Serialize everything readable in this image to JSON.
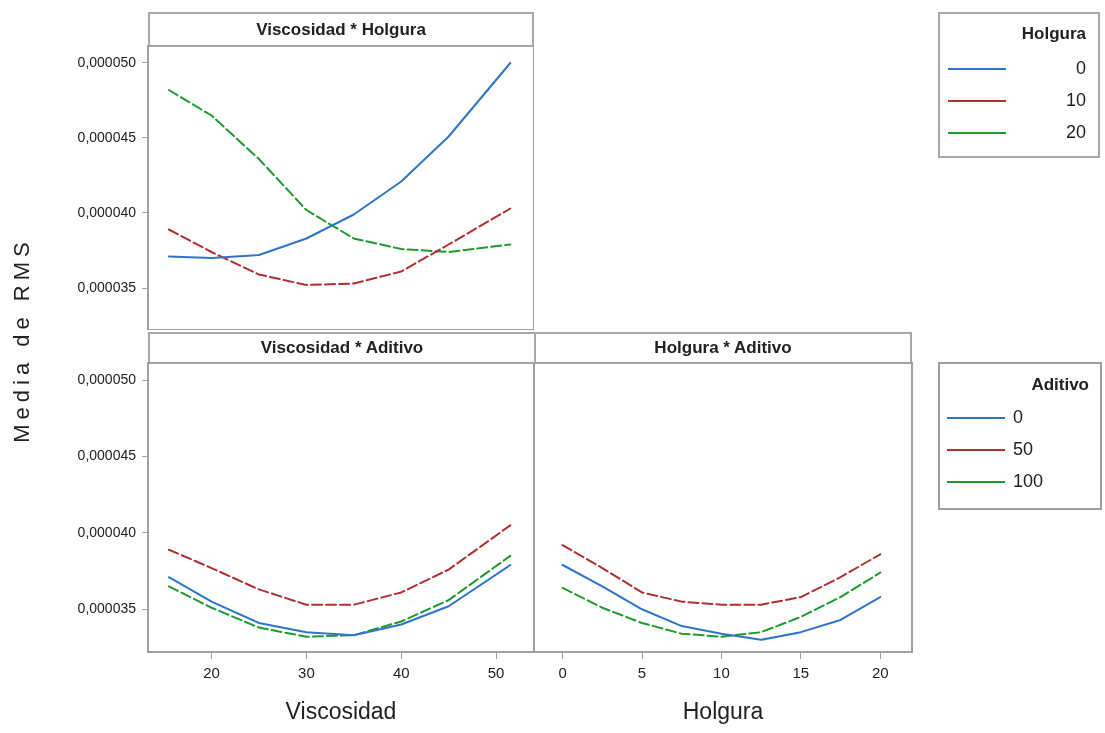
{
  "chart_data": [
    {
      "type": "line",
      "title": "Viscosidad * Holgura",
      "ylabel": "Media de RMS",
      "x": [
        15.5,
        20,
        25,
        30,
        35,
        40,
        45,
        51.5
      ],
      "xlim": [
        13.3,
        54
      ],
      "xticks": [
        20,
        30,
        40,
        50
      ],
      "ylim": [
        3.22e-05,
        5.12e-05
      ],
      "yticks": [
        {
          "value": 3.5e-05,
          "label": "0,000035"
        },
        {
          "value": 4e-05,
          "label": "0,000040"
        },
        {
          "value": 4.5e-05,
          "label": "0,000045"
        },
        {
          "value": 5e-05,
          "label": "0,000050"
        }
      ],
      "tick_labels": "y",
      "grid": false,
      "marker": "none",
      "legend": "right",
      "legend_title": "Holgura",
      "series": [
        {
          "name": "0",
          "color": "#2e75c8",
          "line_style": "solid",
          "values": [
            3.71e-05,
            3.7e-05,
            3.72e-05,
            3.83e-05,
            3.99e-05,
            4.21e-05,
            4.51e-05,
            5e-05
          ]
        },
        {
          "name": "10",
          "color": "#b03030",
          "line_style": "dashed",
          "values": [
            3.89e-05,
            3.74e-05,
            3.59e-05,
            3.52e-05,
            3.53e-05,
            3.61e-05,
            3.79e-05,
            4.03e-05
          ]
        },
        {
          "name": "20",
          "color": "#1e9a2e",
          "line_style": "dashed",
          "values": [
            4.82e-05,
            4.65e-05,
            4.36e-05,
            4.02e-05,
            3.83e-05,
            3.76e-05,
            3.74e-05,
            3.79e-05
          ]
        }
      ]
    },
    {
      "type": "line",
      "title": "Viscosidad * Aditivo",
      "xlabel": "Viscosidad",
      "x": [
        15.5,
        20,
        25,
        30,
        35,
        40,
        45,
        51.5
      ],
      "xlim": [
        13.3,
        54
      ],
      "xticks": [
        20,
        30,
        40,
        50
      ],
      "ylim": [
        3.22e-05,
        5.12e-05
      ],
      "yticks": [
        {
          "value": 3.5e-05,
          "label": "0,000035"
        },
        {
          "value": 4e-05,
          "label": "0,000040"
        },
        {
          "value": 4.5e-05,
          "label": "0,000045"
        },
        {
          "value": 5e-05,
          "label": "0,000050"
        }
      ],
      "grid": false,
      "marker": "none",
      "series": [
        {
          "color": "#2e75c8",
          "line_style": "solid",
          "values": [
            3.71e-05,
            3.55e-05,
            3.41e-05,
            3.35e-05,
            3.33e-05,
            3.4e-05,
            3.52e-05,
            3.79e-05
          ]
        },
        {
          "color": "#b03030",
          "line_style": "dashed",
          "values": [
            3.89e-05,
            3.77e-05,
            3.63e-05,
            3.53e-05,
            3.53e-05,
            3.61e-05,
            3.76e-05,
            4.05e-05
          ]
        },
        {
          "color": "#1e9a2e",
          "line_style": "dashed",
          "values": [
            3.65e-05,
            3.51e-05,
            3.38e-05,
            3.32e-05,
            3.33e-05,
            3.42e-05,
            3.56e-05,
            3.85e-05
          ]
        }
      ]
    },
    {
      "type": "line",
      "title": "Holgura * Aditivo",
      "xlabel": "Holgura",
      "x": [
        0,
        2.5,
        5,
        7.5,
        10,
        12.5,
        15,
        17.5,
        20
      ],
      "xlim": [
        -1.8,
        22
      ],
      "xticks": [
        0,
        5,
        10,
        15,
        20
      ],
      "ylim": [
        3.22e-05,
        5.12e-05
      ],
      "tick_labels": "x",
      "grid": false,
      "marker": "none",
      "legend": "right",
      "legend_title": "Aditivo",
      "series": [
        {
          "name": "0",
          "color": "#2e75c8",
          "line_style": "solid",
          "values": [
            3.79e-05,
            3.65e-05,
            3.5e-05,
            3.39e-05,
            3.34e-05,
            3.3e-05,
            3.35e-05,
            3.43e-05,
            3.58e-05
          ]
        },
        {
          "name": "50",
          "color": "#b03030",
          "line_style": "dashed",
          "values": [
            3.92e-05,
            3.77e-05,
            3.61e-05,
            3.55e-05,
            3.53e-05,
            3.53e-05,
            3.58e-05,
            3.71e-05,
            3.86e-05
          ]
        },
        {
          "name": "100",
          "color": "#1e9a2e",
          "line_style": "dashed",
          "values": [
            3.64e-05,
            3.51e-05,
            3.41e-05,
            3.34e-05,
            3.32e-05,
            3.35e-05,
            3.45e-05,
            3.58e-05,
            3.74e-05
          ]
        }
      ]
    }
  ]
}
